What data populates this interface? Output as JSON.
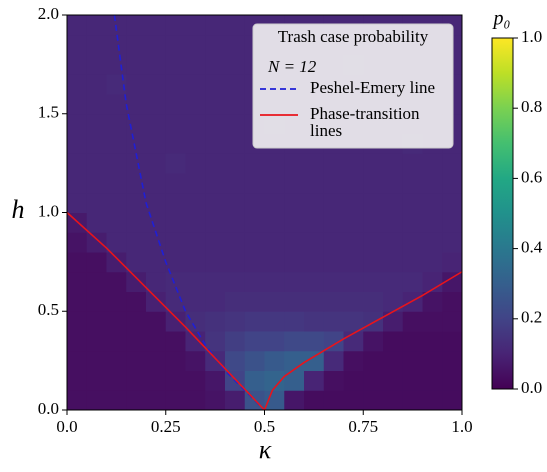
{
  "chart_data": {
    "type": "heatmap",
    "xlabel": "κ",
    "ylabel": "h",
    "colorbar_label": "p₀",
    "legend_title": "Trash case probability",
    "legend_subtitle": "N = 12",
    "xlim": [
      0,
      1
    ],
    "ylim": [
      0,
      2
    ],
    "xticks": [
      {
        "value": 0,
        "label": "0.0"
      },
      0.25,
      0.5,
      0.75,
      {
        "value": 1,
        "label": "1.0"
      }
    ],
    "yticks": [
      {
        "value": 0,
        "label": "0.0"
      },
      0.5,
      {
        "value": 1,
        "label": "1.0"
      },
      1.5,
      {
        "value": 2,
        "label": "2.0"
      }
    ],
    "clim": [
      0,
      1
    ],
    "cticks": [
      {
        "value": 0,
        "label": "0.0"
      },
      0.2,
      0.4,
      0.6,
      0.8,
      {
        "value": 1,
        "label": "1.0"
      }
    ],
    "colormap": "viridis",
    "z": [
      [
        0.04,
        0.04,
        0.04,
        0.04,
        0.04,
        0.04,
        0.04,
        0.05,
        0.08,
        0.25,
        0.28,
        0.06,
        0.03,
        0.03,
        0.03,
        0.03,
        0.03,
        0.03,
        0.03,
        0.03
      ],
      [
        0.04,
        0.04,
        0.04,
        0.04,
        0.04,
        0.04,
        0.04,
        0.06,
        0.2,
        0.3,
        0.32,
        0.3,
        0.1,
        0.04,
        0.03,
        0.03,
        0.03,
        0.03,
        0.03,
        0.03
      ],
      [
        0.04,
        0.04,
        0.04,
        0.04,
        0.04,
        0.04,
        0.05,
        0.12,
        0.22,
        0.25,
        0.28,
        0.3,
        0.3,
        0.12,
        0.04,
        0.03,
        0.03,
        0.03,
        0.03,
        0.03
      ],
      [
        0.04,
        0.04,
        0.04,
        0.04,
        0.04,
        0.04,
        0.1,
        0.15,
        0.18,
        0.2,
        0.2,
        0.22,
        0.22,
        0.2,
        0.12,
        0.05,
        0.03,
        0.03,
        0.03,
        0.03
      ],
      [
        0.04,
        0.04,
        0.04,
        0.04,
        0.04,
        0.09,
        0.13,
        0.14,
        0.15,
        0.16,
        0.16,
        0.16,
        0.15,
        0.15,
        0.15,
        0.14,
        0.08,
        0.04,
        0.04,
        0.04
      ],
      [
        0.04,
        0.04,
        0.04,
        0.04,
        0.09,
        0.12,
        0.12,
        0.12,
        0.13,
        0.13,
        0.13,
        0.13,
        0.13,
        0.13,
        0.13,
        0.13,
        0.12,
        0.1,
        0.05,
        0.04
      ],
      [
        0.04,
        0.04,
        0.04,
        0.08,
        0.11,
        0.12,
        0.12,
        0.12,
        0.12,
        0.12,
        0.12,
        0.12,
        0.12,
        0.12,
        0.12,
        0.12,
        0.12,
        0.12,
        0.1,
        0.06
      ],
      [
        0.04,
        0.04,
        0.08,
        0.11,
        0.11,
        0.11,
        0.11,
        0.11,
        0.11,
        0.11,
        0.11,
        0.11,
        0.11,
        0.11,
        0.11,
        0.11,
        0.11,
        0.11,
        0.11,
        0.1
      ],
      [
        0.05,
        0.08,
        0.11,
        0.11,
        0.11,
        0.11,
        0.11,
        0.11,
        0.11,
        0.11,
        0.11,
        0.11,
        0.11,
        0.11,
        0.11,
        0.11,
        0.11,
        0.11,
        0.11,
        0.11
      ],
      [
        0.07,
        0.11,
        0.11,
        0.11,
        0.11,
        0.11,
        0.11,
        0.11,
        0.11,
        0.11,
        0.11,
        0.11,
        0.11,
        0.11,
        0.11,
        0.11,
        0.11,
        0.11,
        0.11,
        0.11
      ],
      [
        0.11,
        0.11,
        0.11,
        0.11,
        0.11,
        0.11,
        0.11,
        0.11,
        0.11,
        0.11,
        0.11,
        0.11,
        0.11,
        0.11,
        0.11,
        0.11,
        0.11,
        0.11,
        0.11,
        0.11
      ],
      [
        0.11,
        0.11,
        0.11,
        0.11,
        0.11,
        0.11,
        0.11,
        0.11,
        0.11,
        0.11,
        0.11,
        0.11,
        0.11,
        0.11,
        0.11,
        0.11,
        0.11,
        0.11,
        0.11,
        0.11
      ],
      [
        0.11,
        0.11,
        0.11,
        0.11,
        0.11,
        0.12,
        0.11,
        0.11,
        0.11,
        0.11,
        0.11,
        0.11,
        0.11,
        0.11,
        0.11,
        0.11,
        0.11,
        0.11,
        0.11,
        0.11
      ],
      [
        0.11,
        0.11,
        0.11,
        0.11,
        0.11,
        0.11,
        0.11,
        0.11,
        0.11,
        0.11,
        0.11,
        0.11,
        0.11,
        0.11,
        0.11,
        0.11,
        0.11,
        0.12,
        0.11,
        0.11
      ],
      [
        0.11,
        0.11,
        0.11,
        0.11,
        0.11,
        0.11,
        0.11,
        0.11,
        0.11,
        0.11,
        0.12,
        0.11,
        0.11,
        0.11,
        0.11,
        0.11,
        0.11,
        0.11,
        0.11,
        0.11
      ],
      [
        0.11,
        0.11,
        0.11,
        0.11,
        0.11,
        0.11,
        0.11,
        0.11,
        0.11,
        0.11,
        0.11,
        0.11,
        0.11,
        0.11,
        0.11,
        0.11,
        0.11,
        0.11,
        0.11,
        0.11
      ],
      [
        0.11,
        0.11,
        0.12,
        0.11,
        0.11,
        0.11,
        0.11,
        0.11,
        0.11,
        0.11,
        0.11,
        0.11,
        0.11,
        0.11,
        0.11,
        0.11,
        0.11,
        0.11,
        0.11,
        0.11
      ],
      [
        0.11,
        0.11,
        0.11,
        0.11,
        0.11,
        0.11,
        0.11,
        0.11,
        0.11,
        0.11,
        0.11,
        0.11,
        0.11,
        0.11,
        0.12,
        0.11,
        0.11,
        0.11,
        0.11,
        0.11
      ],
      [
        0.11,
        0.11,
        0.11,
        0.11,
        0.11,
        0.11,
        0.11,
        0.11,
        0.11,
        0.11,
        0.11,
        0.11,
        0.11,
        0.11,
        0.11,
        0.11,
        0.11,
        0.11,
        0.11,
        0.11
      ],
      [
        0.11,
        0.11,
        0.11,
        0.11,
        0.11,
        0.11,
        0.11,
        0.11,
        0.11,
        0.11,
        0.11,
        0.11,
        0.11,
        0.11,
        0.11,
        0.11,
        0.11,
        0.11,
        0.11,
        0.11
      ]
    ],
    "series": [
      {
        "name": "Peshel-Emery line",
        "color": "#1f1fd6",
        "linestyle": "dashed",
        "x": [
          0.12,
          0.15,
          0.2,
          0.25,
          0.3,
          0.35,
          0.4,
          0.45,
          0.5
        ],
        "values": [
          2.0,
          1.55,
          1.05,
          0.75,
          0.5,
          0.33,
          0.2,
          0.1,
          0
        ]
      },
      {
        "name": "Phase-transition lines",
        "color": "#e8141c",
        "linestyle": "solid",
        "x": [
          0,
          0.1,
          0.2,
          0.3,
          0.4,
          0.5,
          0.5,
          0.5,
          0.52,
          0.55,
          0.6,
          0.7,
          0.8,
          0.9,
          1.0
        ],
        "values": [
          1,
          0.82,
          0.62,
          0.42,
          0.21,
          0,
          null,
          0,
          0.1,
          0.17,
          0.24,
          0.36,
          0.47,
          0.58,
          0.7
        ]
      }
    ]
  }
}
